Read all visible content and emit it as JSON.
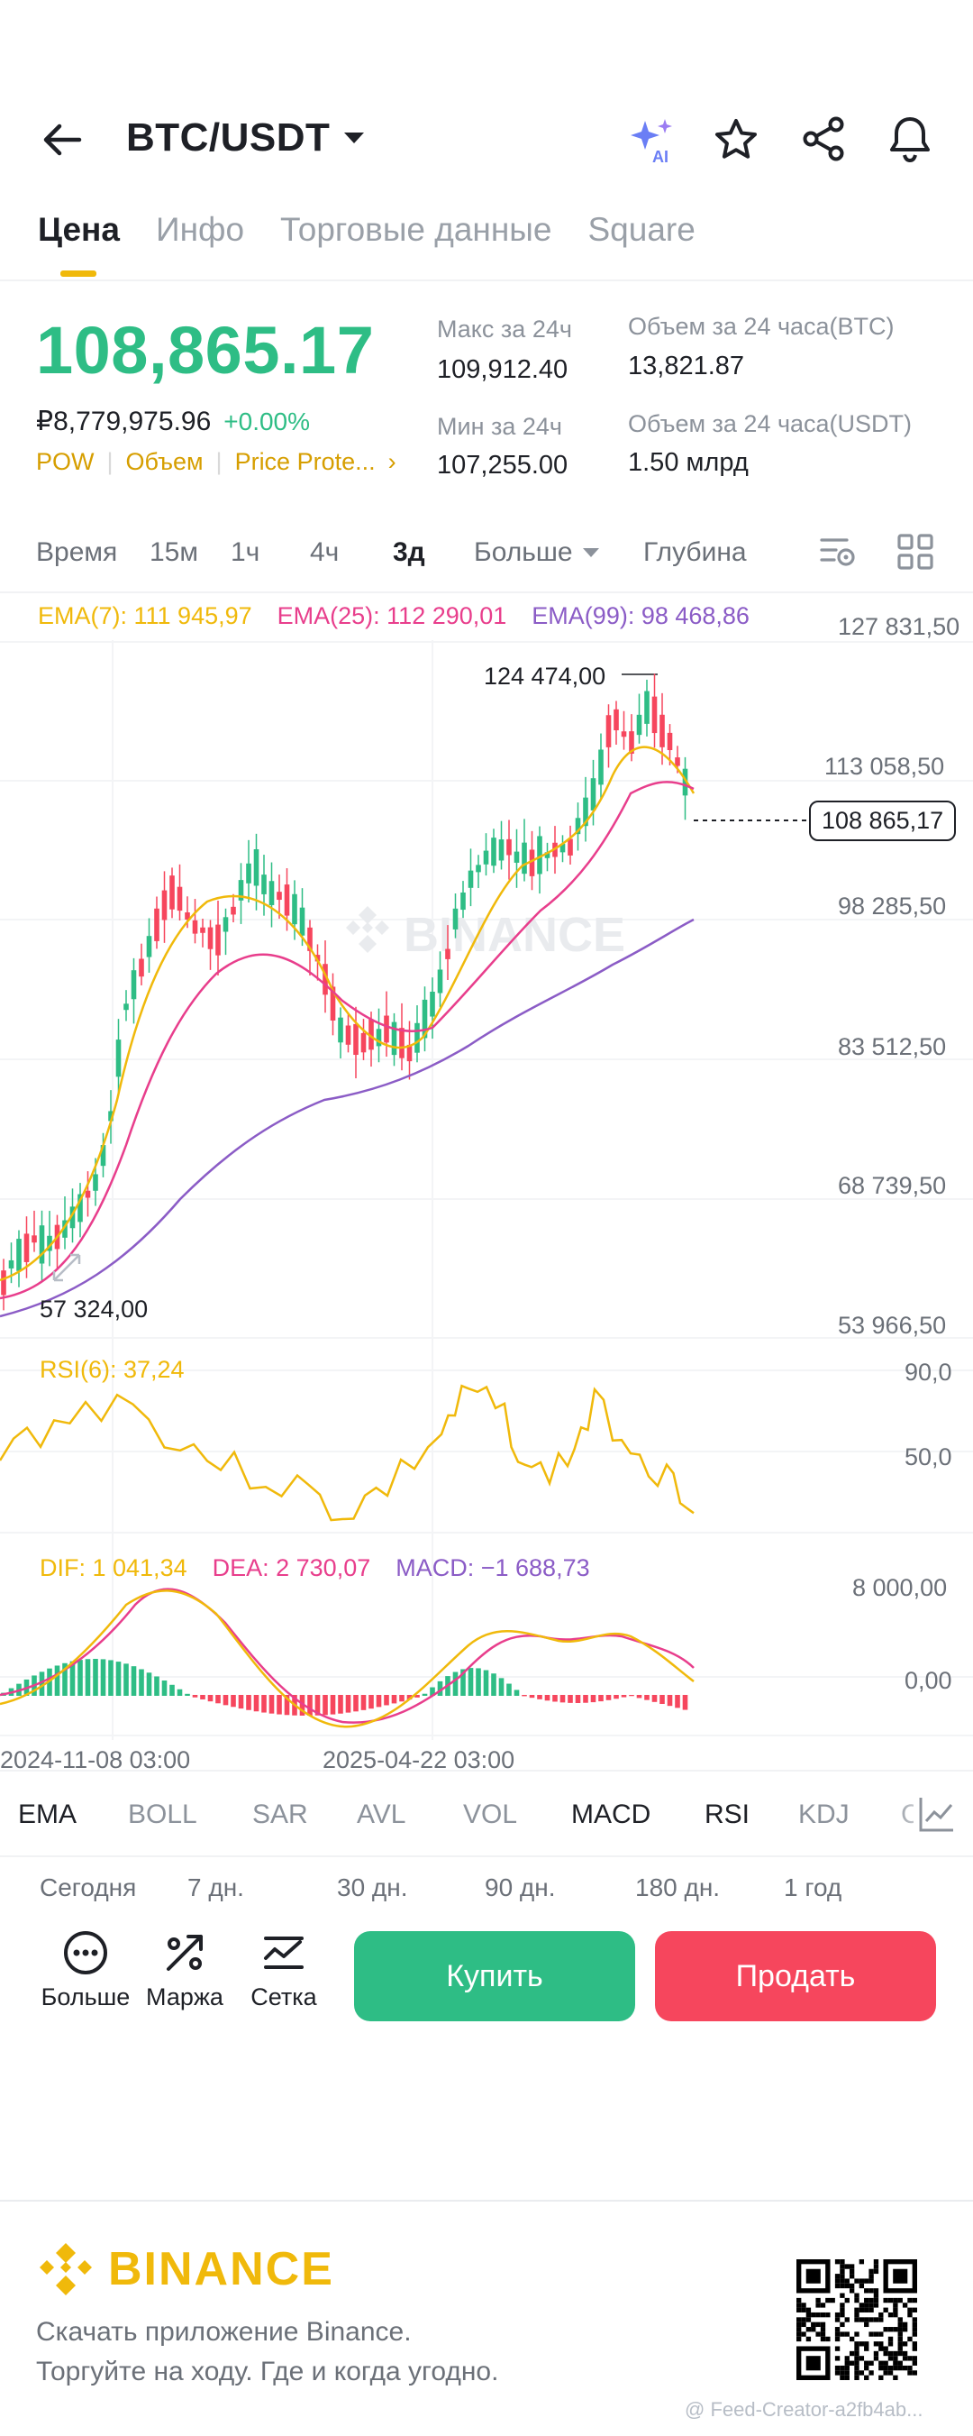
{
  "header": {
    "pair": "BTC/USDT"
  },
  "tabs": [
    {
      "label": "Цена",
      "active": true
    },
    {
      "label": "Инфо",
      "active": false
    },
    {
      "label": "Торговые данные",
      "active": false
    },
    {
      "label": "Square",
      "active": false
    }
  ],
  "price": {
    "last": "108,865.17",
    "fiat": "₽8,779,975.96",
    "change": "+0.00%",
    "tags": [
      "POW",
      "Объем",
      "Price Prote..."
    ]
  },
  "stats": {
    "high_label": "Макс за 24ч",
    "high": "109,912.40",
    "low_label": "Мин за 24ч",
    "low": "107,255.00",
    "vol_btc_label": "Объем за 24 часа(BTC)",
    "vol_btc": "13,821.87",
    "vol_usdt_label": "Объем за 24 часа(USDT)",
    "vol_usdt": "1.50 млрд"
  },
  "intervals": {
    "items": [
      "Время",
      "15м",
      "1ч",
      "4ч",
      "3д"
    ],
    "active": "3д",
    "more": "Больше",
    "depth": "Глубина"
  },
  "chart": {
    "ema7": "EMA(7): 111 945,97",
    "ema25": "EMA(25): 112 290,01",
    "ema99": "EMA(99): 98 468,86",
    "y_labels": [
      "127 831,50",
      "113 058,50",
      "98 285,50",
      "83 512,50",
      "68 739,50",
      "53 966,50"
    ],
    "high_marker": "124 474,00",
    "low_marker": "57 324,00",
    "last_tag": "108 865,17",
    "watermark": "BINANCE",
    "rsi": "RSI(6): 37,24",
    "rsi_y": [
      "90,0",
      "50,0"
    ],
    "dif": "DIF: 1 041,34",
    "dea": "DEA: 2 730,07",
    "macd": "MACD: −1 688,73",
    "macd_y": [
      "8 000,00",
      "0,00"
    ],
    "x_labels": [
      "2024-11-08 03:00",
      "2025-04-22 03:00"
    ],
    "colors": {
      "up": "#2ebd85",
      "down": "#f6465d",
      "ema7": "#f0b90b",
      "ema25": "#e83e8c",
      "ema99": "#8b5cc6"
    }
  },
  "indicators": {
    "items": [
      "EMA",
      "BOLL",
      "SAR",
      "AVL",
      "VOL",
      "MACD",
      "RSI",
      "KDJ",
      "C"
    ],
    "on": [
      "EMA",
      "MACD",
      "RSI"
    ]
  },
  "periods": [
    "Сегодня",
    "7 дн.",
    "30 дн.",
    "90 дн.",
    "180 дн.",
    "1 год"
  ],
  "actions": {
    "more": "Больше",
    "margin": "Маржа",
    "grid": "Сетка",
    "buy": "Купить",
    "sell": "Продать"
  },
  "footer": {
    "brand": "BINANCE",
    "line1": "Скачать приложение Binance.",
    "line2": "Торгуйте на ходу. Где и когда угодно.",
    "credit": "@ Feed-Creator-a2fb4ab..."
  }
}
